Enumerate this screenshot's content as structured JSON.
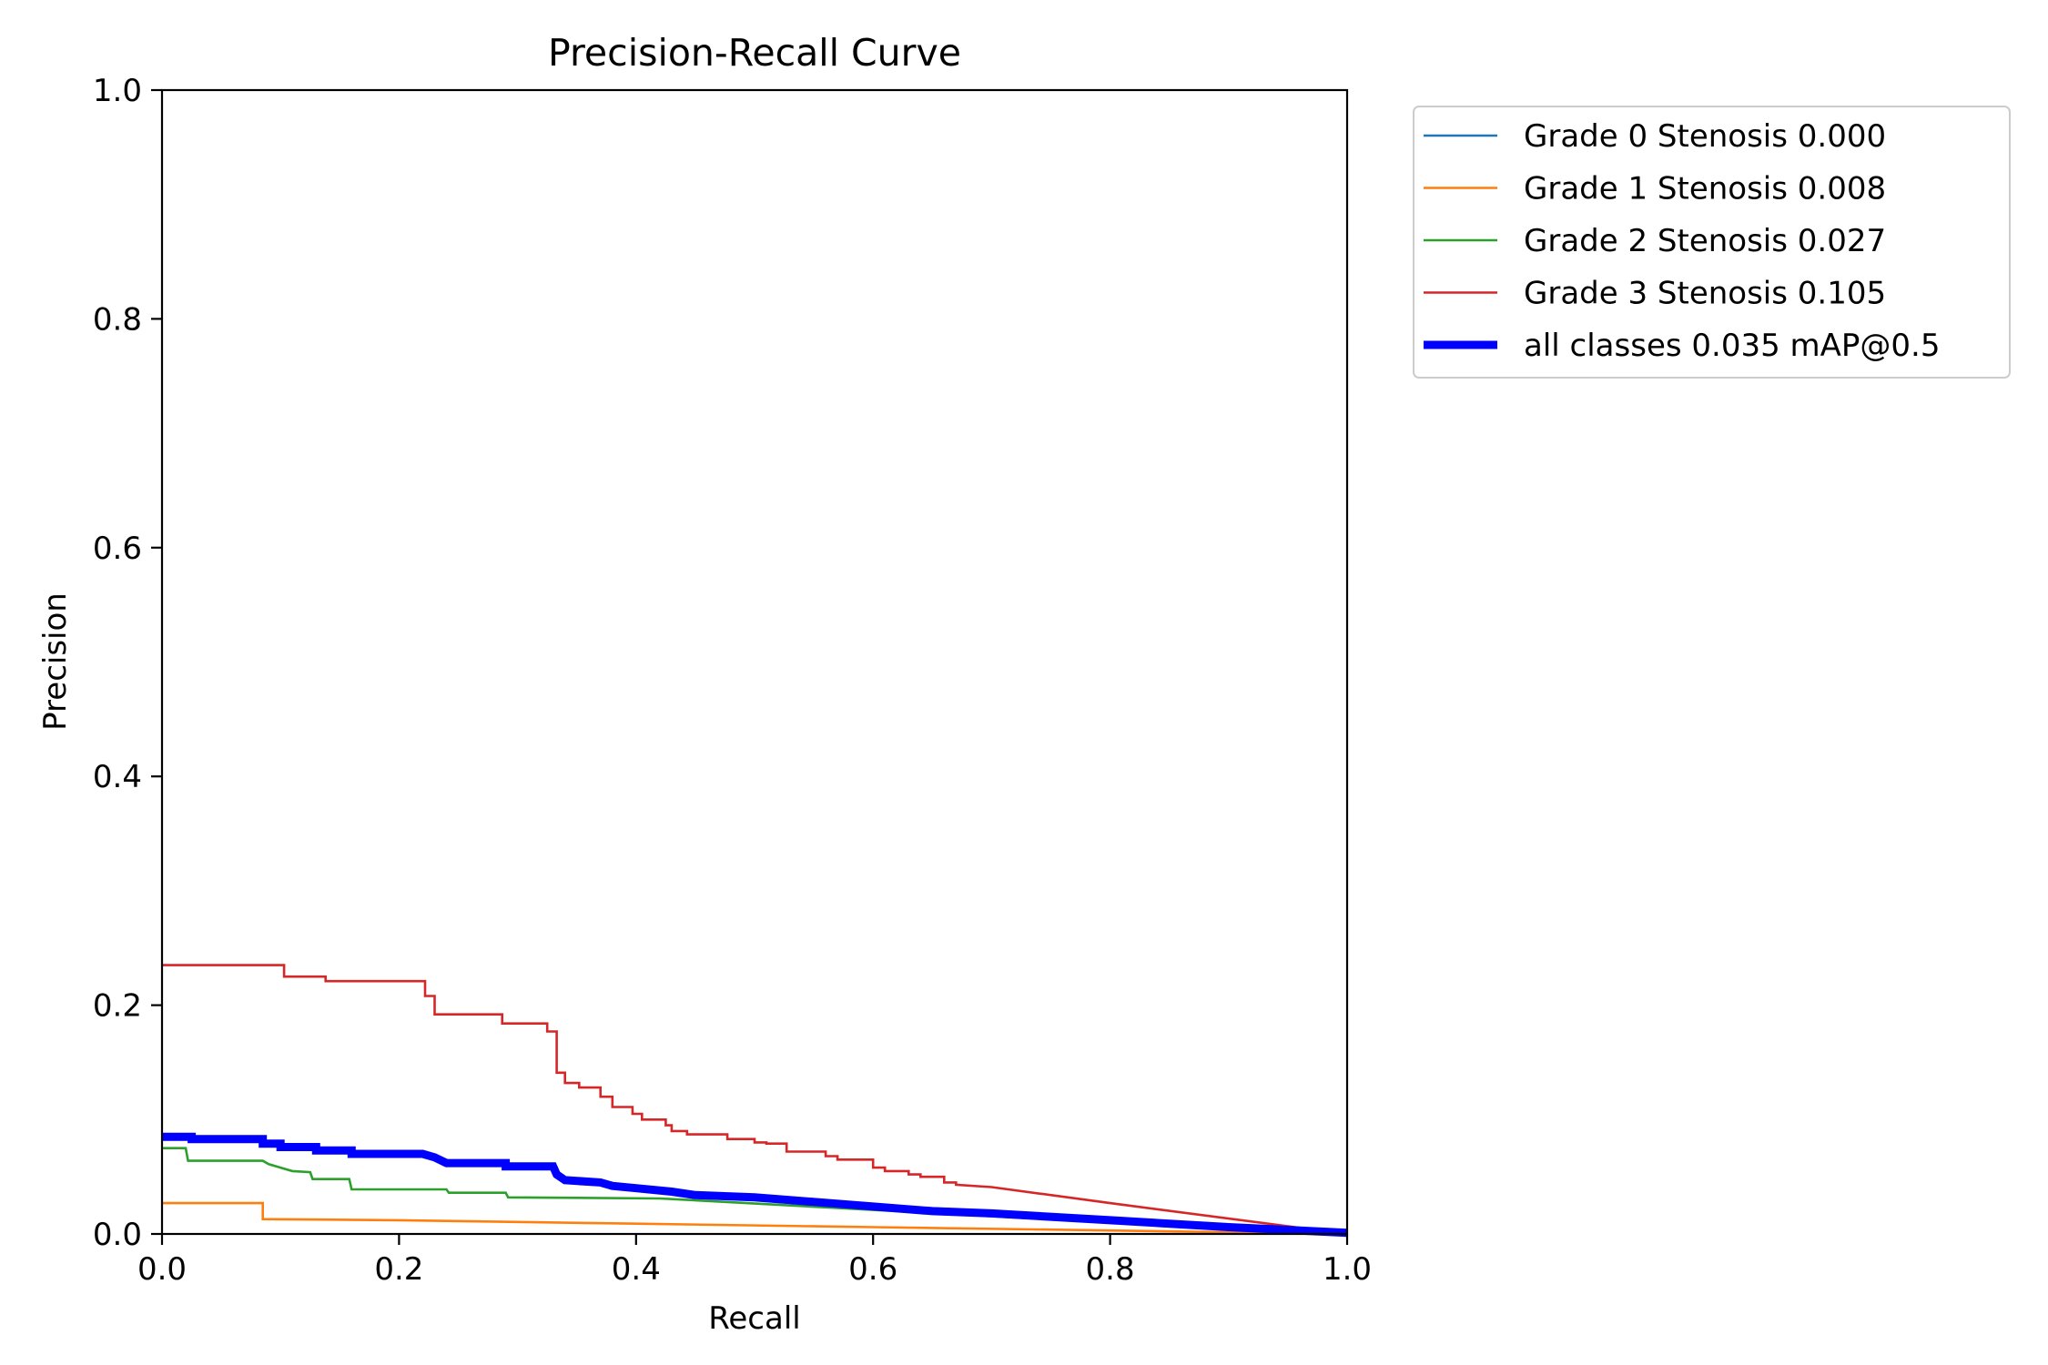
{
  "chart_data": {
    "type": "line",
    "title": "Precision-Recall Curve",
    "xlabel": "Recall",
    "ylabel": "Precision",
    "xlim": [
      0,
      1
    ],
    "ylim": [
      0,
      1
    ],
    "x_ticks": [
      "0.0",
      "0.2",
      "0.4",
      "0.6",
      "0.8",
      "1.0"
    ],
    "y_ticks": [
      "0.0",
      "0.2",
      "0.4",
      "0.6",
      "0.8",
      "1.0"
    ],
    "grid": false,
    "legend_position": "outside-upper-right",
    "series": [
      {
        "name": "Grade 0 Stenosis 0.000",
        "color": "#1f77b4",
        "emphasis": false,
        "points": [
          [
            1.0,
            0.0
          ],
          [
            1.0,
            0.0
          ]
        ]
      },
      {
        "name": "Grade 1 Stenosis 0.008",
        "color": "#ff7f0e",
        "emphasis": false,
        "points": [
          [
            0.0,
            0.027
          ],
          [
            0.085,
            0.027
          ],
          [
            0.085,
            0.013
          ],
          [
            0.2,
            0.012
          ],
          [
            0.4,
            0.009
          ],
          [
            0.6,
            0.006
          ],
          [
            0.8,
            0.003
          ],
          [
            1.0,
            0.0
          ]
        ]
      },
      {
        "name": "Grade 2 Stenosis 0.027",
        "color": "#2ca02c",
        "emphasis": false,
        "points": [
          [
            0.0,
            0.075
          ],
          [
            0.02,
            0.075
          ],
          [
            0.022,
            0.064
          ],
          [
            0.085,
            0.064
          ],
          [
            0.09,
            0.061
          ],
          [
            0.1,
            0.058
          ],
          [
            0.11,
            0.055
          ],
          [
            0.125,
            0.054
          ],
          [
            0.127,
            0.048
          ],
          [
            0.158,
            0.048
          ],
          [
            0.16,
            0.039
          ],
          [
            0.24,
            0.039
          ],
          [
            0.242,
            0.036
          ],
          [
            0.29,
            0.036
          ],
          [
            0.292,
            0.032
          ],
          [
            0.42,
            0.031
          ],
          [
            0.44,
            0.03
          ],
          [
            0.6,
            0.021
          ],
          [
            0.8,
            0.01
          ],
          [
            1.0,
            0.0
          ]
        ]
      },
      {
        "name": "Grade 3 Stenosis 0.105",
        "color": "#d62728",
        "emphasis": false,
        "points": [
          [
            0.0,
            0.235
          ],
          [
            0.103,
            0.235
          ],
          [
            0.103,
            0.225
          ],
          [
            0.138,
            0.225
          ],
          [
            0.138,
            0.221
          ],
          [
            0.222,
            0.221
          ],
          [
            0.222,
            0.208
          ],
          [
            0.23,
            0.208
          ],
          [
            0.23,
            0.192
          ],
          [
            0.287,
            0.192
          ],
          [
            0.287,
            0.184
          ],
          [
            0.325,
            0.184
          ],
          [
            0.325,
            0.177
          ],
          [
            0.333,
            0.177
          ],
          [
            0.333,
            0.141
          ],
          [
            0.34,
            0.141
          ],
          [
            0.34,
            0.132
          ],
          [
            0.352,
            0.132
          ],
          [
            0.352,
            0.128
          ],
          [
            0.37,
            0.128
          ],
          [
            0.37,
            0.12
          ],
          [
            0.38,
            0.12
          ],
          [
            0.38,
            0.111
          ],
          [
            0.397,
            0.111
          ],
          [
            0.397,
            0.105
          ],
          [
            0.405,
            0.105
          ],
          [
            0.405,
            0.1
          ],
          [
            0.425,
            0.1
          ],
          [
            0.425,
            0.095
          ],
          [
            0.43,
            0.095
          ],
          [
            0.43,
            0.09
          ],
          [
            0.443,
            0.09
          ],
          [
            0.443,
            0.087
          ],
          [
            0.477,
            0.087
          ],
          [
            0.477,
            0.083
          ],
          [
            0.5,
            0.083
          ],
          [
            0.5,
            0.08
          ],
          [
            0.51,
            0.08
          ],
          [
            0.51,
            0.079
          ],
          [
            0.527,
            0.079
          ],
          [
            0.527,
            0.072
          ],
          [
            0.56,
            0.072
          ],
          [
            0.56,
            0.068
          ],
          [
            0.57,
            0.068
          ],
          [
            0.57,
            0.065
          ],
          [
            0.6,
            0.065
          ],
          [
            0.6,
            0.058
          ],
          [
            0.61,
            0.058
          ],
          [
            0.61,
            0.055
          ],
          [
            0.63,
            0.055
          ],
          [
            0.63,
            0.052
          ],
          [
            0.64,
            0.052
          ],
          [
            0.64,
            0.05
          ],
          [
            0.66,
            0.05
          ],
          [
            0.66,
            0.045
          ],
          [
            0.67,
            0.045
          ],
          [
            0.67,
            0.043
          ],
          [
            0.7,
            0.041
          ],
          [
            0.8,
            0.027
          ],
          [
            1.0,
            0.0
          ]
        ]
      },
      {
        "name": "all classes 0.035 mAP@0.5",
        "color": "#0000ff",
        "emphasis": true,
        "points": [
          [
            0.0,
            0.085
          ],
          [
            0.025,
            0.085
          ],
          [
            0.025,
            0.083
          ],
          [
            0.085,
            0.083
          ],
          [
            0.085,
            0.079
          ],
          [
            0.1,
            0.079
          ],
          [
            0.1,
            0.076
          ],
          [
            0.13,
            0.076
          ],
          [
            0.13,
            0.073
          ],
          [
            0.16,
            0.073
          ],
          [
            0.16,
            0.07
          ],
          [
            0.22,
            0.07
          ],
          [
            0.23,
            0.067
          ],
          [
            0.24,
            0.062
          ],
          [
            0.29,
            0.062
          ],
          [
            0.29,
            0.059
          ],
          [
            0.33,
            0.059
          ],
          [
            0.333,
            0.052
          ],
          [
            0.34,
            0.047
          ],
          [
            0.37,
            0.045
          ],
          [
            0.38,
            0.042
          ],
          [
            0.4,
            0.04
          ],
          [
            0.43,
            0.037
          ],
          [
            0.45,
            0.034
          ],
          [
            0.5,
            0.032
          ],
          [
            0.6,
            0.024
          ],
          [
            0.65,
            0.02
          ],
          [
            0.7,
            0.018
          ],
          [
            0.8,
            0.012
          ],
          [
            0.9,
            0.006
          ],
          [
            1.0,
            0.001
          ]
        ]
      }
    ]
  }
}
